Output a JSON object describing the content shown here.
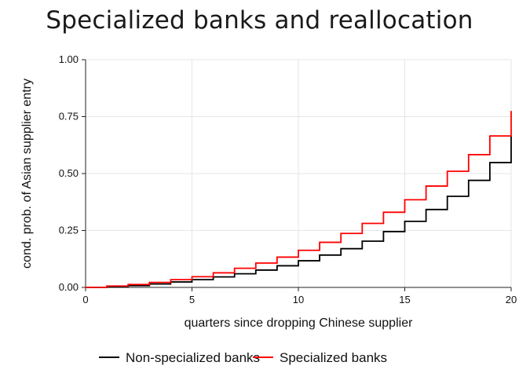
{
  "chart_data": {
    "type": "line",
    "step": true,
    "title": "Specialized banks and reallocation",
    "xlabel": "quarters since dropping Chinese supplier",
    "ylabel": "cond. prob. of Asian supplier entry",
    "xlim": [
      0,
      20
    ],
    "ylim": [
      0,
      1
    ],
    "x_ticks": [
      0,
      5,
      10,
      15,
      20
    ],
    "x_tick_labels": [
      "0",
      "5",
      "10",
      "15",
      "20"
    ],
    "y_ticks": [
      0,
      0.25,
      0.5,
      0.75,
      1
    ],
    "y_tick_labels": [
      "0.00",
      "0.25",
      "0.50",
      "0.75",
      "1.00"
    ],
    "grid": true,
    "legend_position": "bottom",
    "x": [
      0,
      1,
      2,
      3,
      4,
      5,
      6,
      7,
      8,
      9,
      10,
      11,
      12,
      13,
      14,
      15,
      16,
      17,
      18,
      19,
      20
    ],
    "series": [
      {
        "name": "Non-specialized banks",
        "color": "#000000",
        "values": [
          0.0,
          0.003,
          0.008,
          0.015,
          0.024,
          0.034,
          0.046,
          0.06,
          0.076,
          0.095,
          0.117,
          0.142,
          0.17,
          0.203,
          0.245,
          0.29,
          0.342,
          0.4,
          0.47,
          0.548,
          0.665
        ]
      },
      {
        "name": "Specialized banks",
        "color": "#ff0000",
        "values": [
          0.0,
          0.006,
          0.013,
          0.022,
          0.034,
          0.047,
          0.064,
          0.084,
          0.107,
          0.133,
          0.163,
          0.198,
          0.237,
          0.281,
          0.33,
          0.385,
          0.445,
          0.51,
          0.583,
          0.665,
          0.775
        ]
      }
    ]
  }
}
